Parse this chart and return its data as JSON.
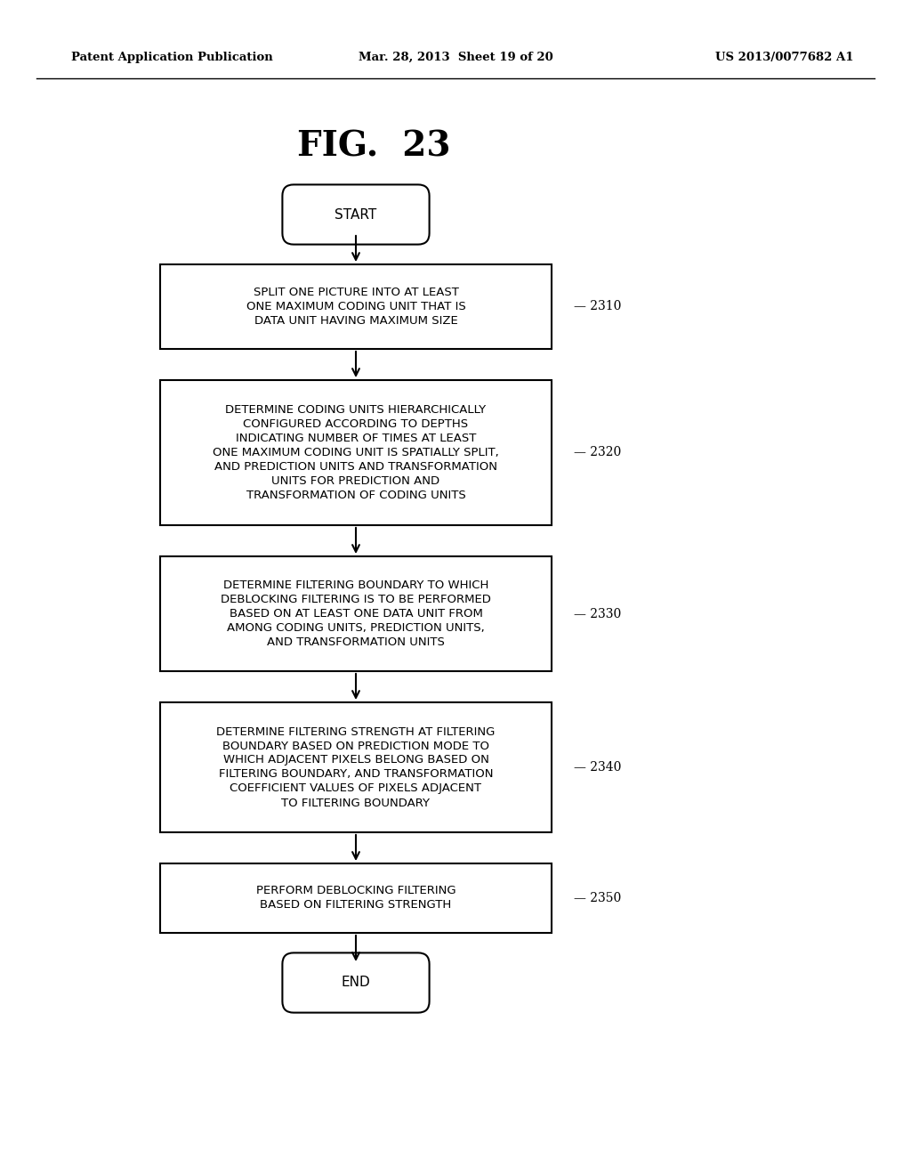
{
  "bg_color": "#ffffff",
  "title": "FIG.  23",
  "header_left": "Patent Application Publication",
  "header_mid": "Mar. 28, 2013  Sheet 19 of 20",
  "header_right": "US 2013/0077682 A1",
  "start_label": "START",
  "end_label": "END",
  "boxes": [
    {
      "id": "2310",
      "label": "SPLIT ONE PICTURE INTO AT LEAST\nONE MAXIMUM CODING UNIT THAT IS\nDATA UNIT HAVING MAXIMUM SIZE",
      "ref": "2310",
      "lines": 3
    },
    {
      "id": "2320",
      "label": "DETERMINE CODING UNITS HIERARCHICALLY\nCONFIGURED ACCORDING TO DEPTHS\nINDICATING NUMBER OF TIMES AT LEAST\nONE MAXIMUM CODING UNIT IS SPATIALLY SPLIT,\nAND PREDICTION UNITS AND TRANSFORMATION\nUNITS FOR PREDICTION AND\nTRANSFORMATION OF CODING UNITS",
      "ref": "2320",
      "lines": 7
    },
    {
      "id": "2330",
      "label": "DETERMINE FILTERING BOUNDARY TO WHICH\nDEBLOCKING FILTERING IS TO BE PERFORMED\nBASED ON AT LEAST ONE DATA UNIT FROM\nAMONG CODING UNITS, PREDICTION UNITS,\nAND TRANSFORMATION UNITS",
      "ref": "2330",
      "lines": 5
    },
    {
      "id": "2340",
      "label": "DETERMINE FILTERING STRENGTH AT FILTERING\nBOUNDARY BASED ON PREDICTION MODE TO\nWHICH ADJACENT PIXELS BELONG BASED ON\nFILTERING BOUNDARY, AND TRANSFORMATION\nCOEFFICIENT VALUES OF PIXELS ADJACENT\nTO FILTERING BOUNDARY",
      "ref": "2340",
      "lines": 6
    },
    {
      "id": "2350",
      "label": "PERFORM DEBLOCKING FILTERING\nBASED ON FILTERING STRENGTH",
      "ref": "2350",
      "lines": 2
    }
  ],
  "text_color": "#000000",
  "line_color": "#000000",
  "font_size_box": 9.5,
  "font_size_title": 28,
  "font_size_header": 9.5,
  "font_size_ref": 10,
  "font_size_terminal": 11
}
